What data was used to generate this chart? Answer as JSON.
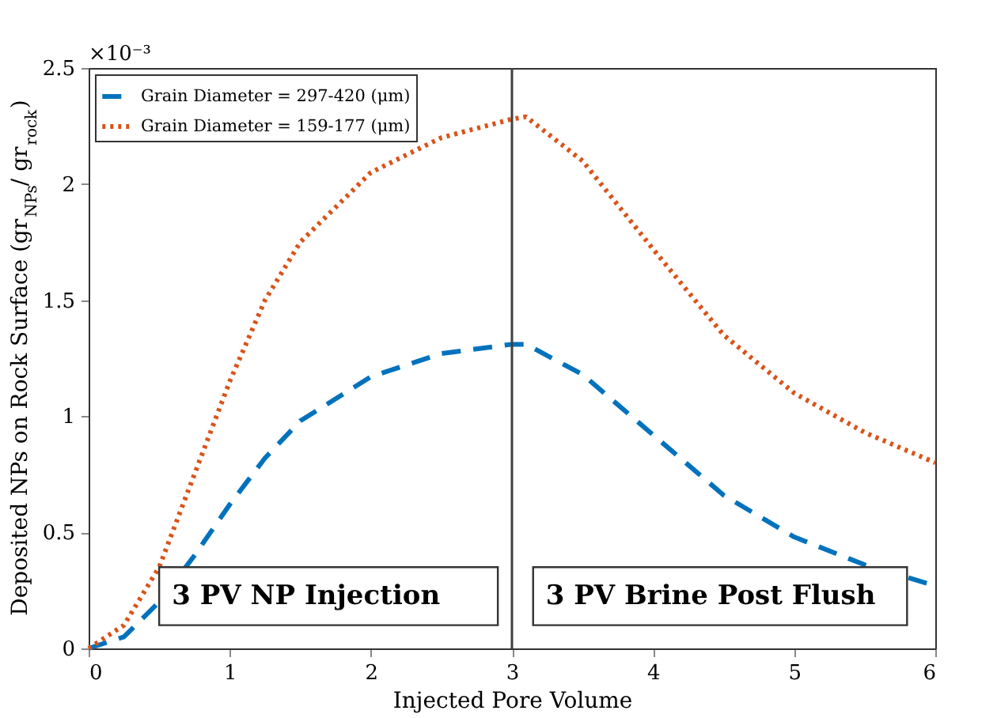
{
  "chart_data": {
    "type": "line",
    "xlabel": "Injected Pore Volume",
    "ylabel": "Deposited NPs on Rock Surface (gr$_{NPs}$/ gr$_{rock}$)",
    "x": [
      0,
      0.25,
      0.5,
      0.75,
      1,
      1.25,
      1.5,
      2,
      2.5,
      3,
      3.1,
      3.5,
      4,
      4.5,
      5,
      5.5,
      6
    ],
    "series": [
      {
        "name": "Grain Diameter = 297-420 (μm)",
        "color": "#0072bd",
        "line_style": "dashed",
        "values": [
          0,
          0.05,
          0.2,
          0.4,
          0.62,
          0.82,
          0.98,
          1.17,
          1.27,
          1.31,
          1.31,
          1.18,
          0.92,
          0.66,
          0.48,
          0.36,
          0.27
        ]
      },
      {
        "name": "Grain Diameter = 159-177 (μm)",
        "color": "#d95319",
        "line_style": "dotted",
        "values": [
          0,
          0.1,
          0.35,
          0.75,
          1.15,
          1.5,
          1.75,
          2.05,
          2.2,
          2.28,
          2.29,
          2.1,
          1.72,
          1.35,
          1.1,
          0.93,
          0.8
        ]
      }
    ],
    "xlim": [
      0,
      6
    ],
    "xticks": [
      0,
      1,
      2,
      3,
      4,
      5,
      6
    ],
    "ylim": [
      0,
      2.5
    ],
    "yticks": [
      0,
      0.5,
      1,
      1.5,
      2,
      2.5
    ],
    "ref_lines": [
      {
        "axis": "x",
        "value": 3,
        "color": "#404040"
      }
    ],
    "annotations": [
      "×10⁻³",
      "3 PV NP Injection",
      "3 PV Brine Post Flush"
    ],
    "grid": false,
    "legend": "top left"
  }
}
